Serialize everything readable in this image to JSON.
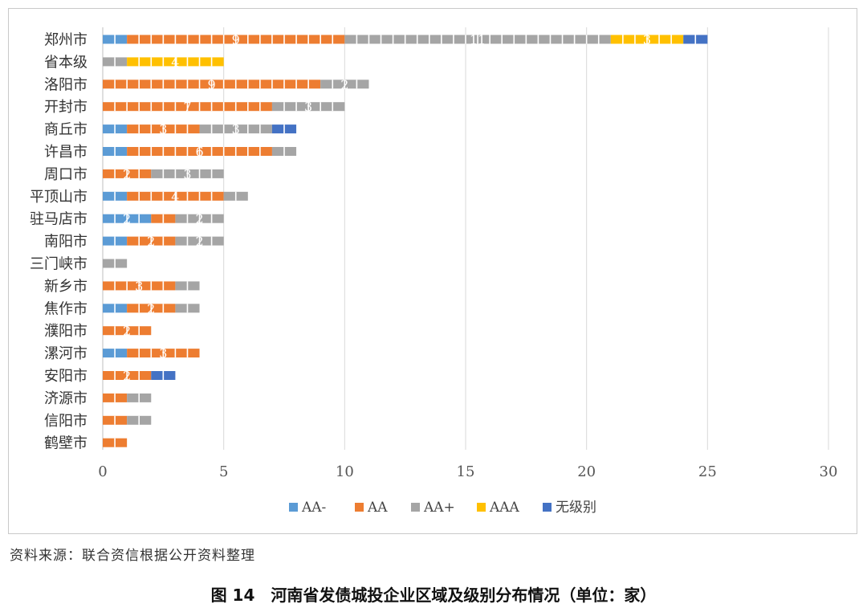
{
  "chart_data": {
    "type": "bar",
    "orientation": "horizontal",
    "stacked": true,
    "categories": [
      "郑州市",
      "省本级",
      "洛阳市",
      "开封市",
      "商丘市",
      "许昌市",
      "周口市",
      "平顶山市",
      "驻马店市",
      "南阳市",
      "三门峡市",
      "新乡市",
      "焦作市",
      "濮阳市",
      "漯河市",
      "安阳市",
      "济源市",
      "信阳市",
      "鹤壁市"
    ],
    "series": [
      {
        "name": "AA-",
        "color": "#5b9bd5",
        "values": [
          1,
          0,
          0,
          0,
          1,
          1,
          0,
          1,
          2,
          1,
          0,
          0,
          1,
          0,
          1,
          0,
          0,
          0,
          0
        ]
      },
      {
        "name": "AA",
        "color": "#ed7d31",
        "values": [
          9,
          0,
          9,
          7,
          3,
          6,
          2,
          4,
          1,
          2,
          0,
          3,
          2,
          2,
          3,
          2,
          1,
          1,
          1
        ]
      },
      {
        "name": "AA+",
        "color": "#a5a5a5",
        "values": [
          11,
          1,
          2,
          3,
          3,
          1,
          3,
          1,
          2,
          2,
          1,
          1,
          1,
          0,
          0,
          0,
          1,
          1,
          0
        ]
      },
      {
        "name": "AAA",
        "color": "#ffc000",
        "values": [
          3,
          4,
          0,
          0,
          0,
          0,
          0,
          0,
          0,
          0,
          0,
          0,
          0,
          0,
          0,
          0,
          0,
          0,
          0
        ]
      },
      {
        "name": "无级别",
        "color": "#4472c4",
        "values": [
          1,
          0,
          0,
          0,
          1,
          0,
          0,
          0,
          0,
          0,
          0,
          0,
          0,
          0,
          0,
          1,
          0,
          0,
          0
        ]
      }
    ],
    "xlim": [
      0,
      30
    ],
    "xticks": [
      "0",
      "5",
      "10",
      "15",
      "20",
      "25",
      "30"
    ],
    "grid": true,
    "legend": "bottom",
    "title": "",
    "xlabel": "",
    "ylabel": ""
  },
  "source_note": "资料来源：联合资信根据公开资料整理",
  "figure_caption": "图 14　河南省发债城投企业区域及级别分布情况（单位：家）"
}
